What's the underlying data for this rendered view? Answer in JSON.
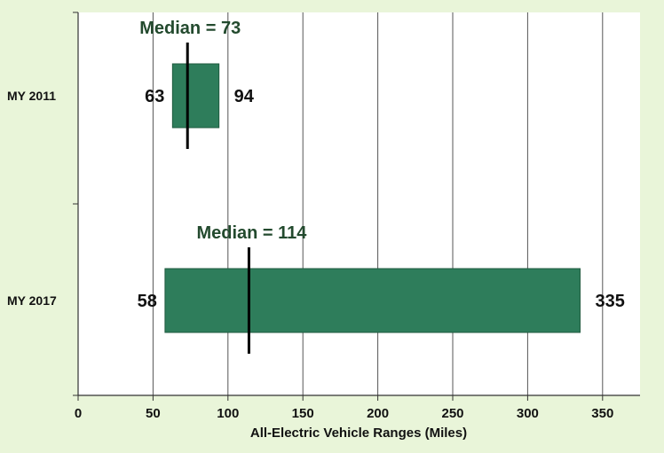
{
  "chart_data": {
    "type": "bar",
    "orientation": "horizontal-range",
    "xlabel": "All-Electric Vehicle Ranges (Miles)",
    "ylabel": "",
    "xlim": [
      0,
      375
    ],
    "xticks": [
      0,
      50,
      100,
      150,
      200,
      250,
      300,
      350
    ],
    "grid": "vertical",
    "bar_color": "#2e7d5b",
    "series": [
      {
        "category": "MY 2011",
        "min": 63,
        "max": 94,
        "median": 73,
        "min_label": "63",
        "max_label": "94",
        "median_label": "Median = 73"
      },
      {
        "category": "MY 2017",
        "min": 58,
        "max": 335,
        "median": 114,
        "min_label": "58",
        "max_label": "335",
        "median_label": "Median = 114"
      }
    ]
  }
}
